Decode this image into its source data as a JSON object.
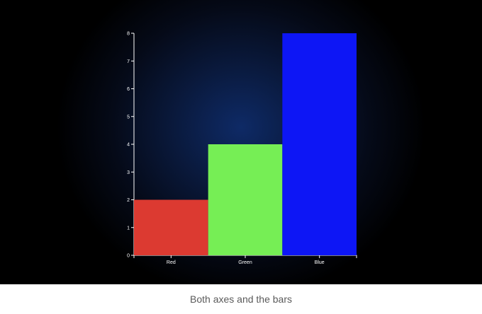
{
  "caption": "Both axes and the bars",
  "colors": {
    "axis": "#ffffff",
    "caption_text": "#5a5a5a",
    "background_center": "#0e2a66",
    "background_edge": "#000000"
  },
  "chart_data": {
    "type": "bar",
    "title": "",
    "xlabel": "",
    "ylabel": "",
    "categories": [
      "Red",
      "Green",
      "Blue"
    ],
    "values": [
      2,
      4,
      8
    ],
    "bar_colors": [
      "#dc3a31",
      "#76ee55",
      "#0d16f5"
    ],
    "ylim": [
      0,
      8
    ],
    "yticks": [
      "0",
      "1",
      "2",
      "3",
      "4",
      "5",
      "6",
      "7",
      "8"
    ],
    "grid": false,
    "legend": "none"
  }
}
